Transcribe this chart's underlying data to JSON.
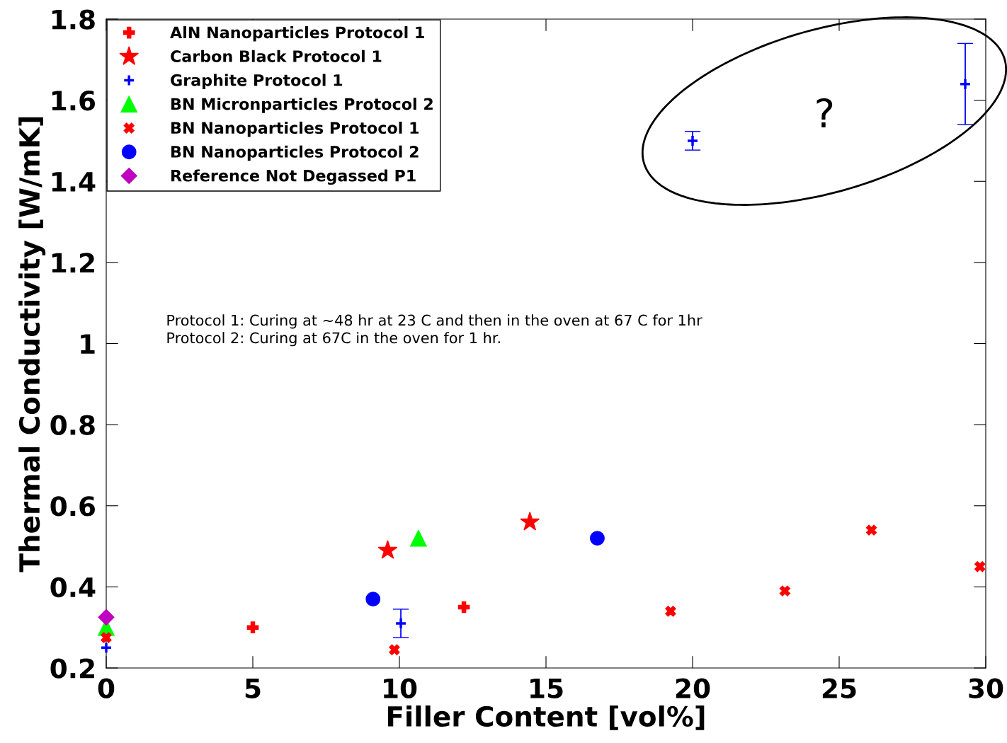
{
  "chart_data": {
    "type": "scatter",
    "xlabel": "Filler Content [vol%]",
    "ylabel": "Thermal Conductivity [W/mK]",
    "xlim": [
      0,
      30
    ],
    "xticks": [
      0,
      5,
      10,
      15,
      20,
      25,
      30
    ],
    "ylim": [
      0.2,
      1.8
    ],
    "yticks": [
      0.2,
      0.4,
      0.6,
      0.8,
      1,
      1.2,
      1.4,
      1.6,
      1.8
    ],
    "grid": false,
    "legend": "top left",
    "series": [
      {
        "name": "AlN Nanoparticles Protocol 1",
        "color": "#ff0000",
        "marker": "cross",
        "x": [
          5,
          12.2
        ],
        "values": [
          0.3,
          0.35
        ]
      },
      {
        "name": "Carbon Black Protocol 1",
        "color": "#ff0000",
        "marker": "star",
        "x": [
          9.6,
          14.45
        ],
        "values": [
          0.49,
          0.56
        ]
      },
      {
        "name": "Graphite Protocol 1",
        "color": "#0000ff",
        "marker": "plus",
        "x": [
          0,
          10.05,
          20,
          29.3
        ],
        "values": [
          0.25,
          0.31,
          1.5,
          1.64
        ],
        "errors": [
          null,
          0.035,
          0.023,
          0.1
        ]
      },
      {
        "name": "BN Micronparticles Protocol 2",
        "color": "#00ff00",
        "marker": "triangle",
        "x": [
          0,
          10.65
        ],
        "values": [
          0.3,
          0.52
        ]
      },
      {
        "name": "BN Nanoparticles Protocol 1",
        "color": "#ff0000",
        "marker": "x",
        "x": [
          0,
          9.83,
          19.25,
          23.15,
          26.1,
          29.8
        ],
        "values": [
          0.275,
          0.245,
          0.34,
          0.39,
          0.54,
          0.45
        ]
      },
      {
        "name": "BN Nanoparticles Protocol 2",
        "color": "#0000ff",
        "marker": "circle",
        "x": [
          9.1,
          16.75
        ],
        "values": [
          0.37,
          0.52
        ]
      },
      {
        "name": "Reference Not Degassed P1",
        "color": "#c000c0",
        "marker": "diamond",
        "x": [
          0
        ],
        "values": [
          0.325
        ]
      }
    ],
    "annotations": [
      "Protocol 1: Curing at ~48 hr at 23 C and then in the oven at 67 C for 1hr",
      "Protocol 2: Curing at 67C in the oven for 1 hr.",
      "?"
    ]
  }
}
